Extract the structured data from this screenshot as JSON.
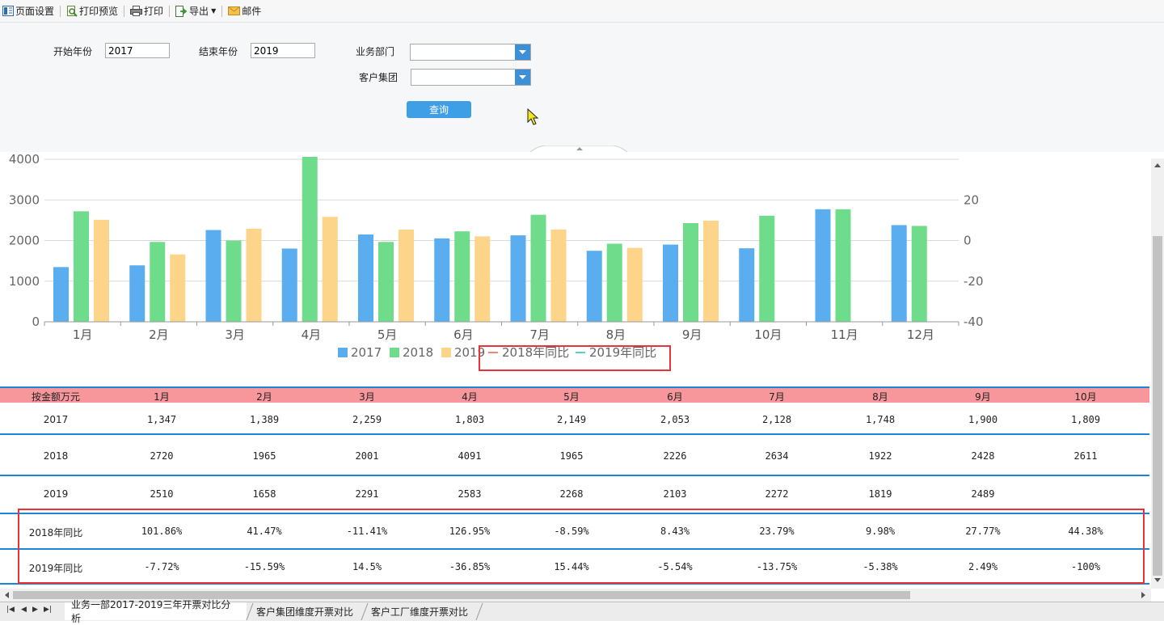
{
  "toolbar": {
    "page_setup": "页面设置",
    "print_preview": "打印预览",
    "print": "打印",
    "export": "导出",
    "mail": "邮件"
  },
  "filters": {
    "start_year_label": "开始年份",
    "start_year_value": "2017",
    "end_year_label": "结束年份",
    "end_year_value": "2019",
    "department_label": "业务部门",
    "department_value": "",
    "customer_group_label": "客户集团",
    "customer_group_value": "",
    "query_button": "查询"
  },
  "chart_data": {
    "type": "bar",
    "categories": [
      "1月",
      "2月",
      "3月",
      "4月",
      "5月",
      "6月",
      "7月",
      "8月",
      "9月",
      "10月",
      "11月",
      "12月"
    ],
    "series": [
      {
        "name": "2017",
        "values": [
          1347,
          1389,
          2259,
          1803,
          2149,
          2053,
          2128,
          1748,
          1900,
          1809,
          2770,
          2380
        ],
        "color": "#5aaef0"
      },
      {
        "name": "2018",
        "values": [
          2720,
          1965,
          2001,
          4091,
          1965,
          2226,
          2634,
          1922,
          2428,
          2611,
          2770,
          2360
        ],
        "color": "#6fdc8c"
      },
      {
        "name": "2019",
        "values": [
          2510,
          1658,
          2291,
          2583,
          2268,
          2103,
          2272,
          1819,
          2489,
          null,
          null,
          null
        ],
        "color": "#fcd48a"
      }
    ],
    "line_series": [
      {
        "name": "2018年同比",
        "color": "#f0837a"
      },
      {
        "name": "2019年同比",
        "color": "#5ccfc5"
      }
    ],
    "ylim": [
      0,
      4000
    ],
    "yticks": [
      "0",
      "1000",
      "2000",
      "3000",
      "4000"
    ],
    "y2lim": [
      -40,
      40
    ],
    "y2ticks": [
      "-40",
      "-20",
      "0",
      "20"
    ],
    "grid": true,
    "legend": "bottom-center"
  },
  "table": {
    "header": [
      "按金额万元",
      "1月",
      "2月",
      "3月",
      "4月",
      "5月",
      "6月",
      "7月",
      "8月",
      "9月",
      "10月"
    ],
    "rows": [
      [
        "2017",
        "1,347",
        "1,389",
        "2,259",
        "1,803",
        "2,149",
        "2,053",
        "2,128",
        "1,748",
        "1,900",
        "1,809"
      ],
      [
        "2018",
        "2720",
        "1965",
        "2001",
        "4091",
        "1965",
        "2226",
        "2634",
        "1922",
        "2428",
        "2611"
      ],
      [
        "2019",
        "2510",
        "1658",
        "2291",
        "2583",
        "2268",
        "2103",
        "2272",
        "1819",
        "2489",
        ""
      ],
      [
        "2018年同比",
        "101.86%",
        "41.47%",
        "-11.41%",
        "126.95%",
        "-8.59%",
        "8.43%",
        "23.79%",
        "9.98%",
        "27.77%",
        "44.38%"
      ],
      [
        "2019年同比",
        "-7.72%",
        "-15.59%",
        "14.5%",
        "-36.85%",
        "15.44%",
        "-5.54%",
        "-13.75%",
        "-5.38%",
        "2.49%",
        "-100%"
      ]
    ]
  },
  "sheet_tabs": [
    "业务一部2017-2019三年开票对比分析",
    "客户集团维度开票对比",
    "客户工厂维度开票对比"
  ],
  "colors": {
    "header_bg": "#f7969b",
    "row_line": "#1b86d9",
    "highlight_box": "#e8333a"
  }
}
